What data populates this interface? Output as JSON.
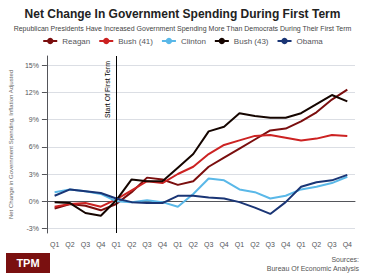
{
  "chart_data": {
    "type": "line",
    "title": "Net Change In Government Spending During First Term",
    "subtitle": "Republican Presidents Have Increased Government Spending More Than Democrats During Their First Term",
    "ylabel": "Net Change in Government Spending, Inflation Adjusted",
    "categories": [
      "Q1",
      "Q2",
      "Q3",
      "Q4",
      "Q1",
      "Q2",
      "Q3",
      "Q4",
      "Q1",
      "Q2",
      "Q3",
      "Q4",
      "Q1",
      "Q2",
      "Q3",
      "Q4",
      "Q1",
      "Q2",
      "Q3",
      "Q4"
    ],
    "series": [
      {
        "name": "Reagan",
        "color": "#7a0e0e",
        "values": [
          -0.8,
          -0.3,
          -0.5,
          -1.0,
          -0.3,
          1.0,
          2.6,
          2.4,
          1.8,
          2.2,
          3.8,
          4.8,
          5.8,
          6.8,
          7.8,
          8.0,
          8.8,
          9.8,
          11.2,
          12.3
        ]
      },
      {
        "name": "Bush (41)",
        "color": "#cc2222",
        "values": [
          -0.6,
          -0.3,
          -0.2,
          -0.6,
          0.2,
          1.2,
          2.2,
          2.0,
          3.0,
          3.8,
          5.2,
          6.2,
          6.7,
          7.2,
          7.3,
          7.0,
          6.7,
          6.9,
          7.3,
          7.2
        ]
      },
      {
        "name": "Clinton",
        "color": "#5ab8e8",
        "values": [
          1.0,
          1.3,
          1.1,
          0.8,
          0.0,
          -0.1,
          0.1,
          -0.1,
          -0.6,
          0.8,
          2.5,
          2.3,
          1.3,
          1.0,
          0.3,
          0.6,
          1.3,
          1.6,
          2.0,
          2.7
        ]
      },
      {
        "name": "Bush (43)",
        "color": "#150500",
        "values": [
          -0.1,
          -0.2,
          -1.3,
          -1.6,
          0.1,
          2.4,
          2.2,
          2.2,
          3.7,
          5.2,
          7.7,
          8.2,
          9.7,
          9.4,
          9.2,
          9.2,
          9.7,
          10.7,
          11.7,
          11.0
        ]
      },
      {
        "name": "Obama",
        "color": "#1a3575",
        "values": [
          0.6,
          1.3,
          1.1,
          0.9,
          0.3,
          -0.1,
          -0.2,
          -0.2,
          0.6,
          0.6,
          0.4,
          0.3,
          -0.1,
          -0.7,
          -1.4,
          -0.1,
          1.6,
          2.1,
          2.3,
          2.9
        ]
      }
    ],
    "ylim": [
      -3.5,
      16.0
    ],
    "yticks": [
      {
        "value": -3,
        "label": "-3%"
      },
      {
        "value": 0,
        "label": "0%"
      },
      {
        "value": 3,
        "label": "3%"
      },
      {
        "value": 6,
        "label": "6%"
      },
      {
        "value": 9,
        "label": "9%"
      },
      {
        "value": 12,
        "label": "12%"
      },
      {
        "value": 15,
        "label": "15%"
      }
    ],
    "grid": true,
    "legend": "top",
    "annotations": [
      {
        "text": "Start Of First Term",
        "x": 4
      }
    ],
    "source": "Sources:\nBureau Of Economic Analysis",
    "logo": {
      "text": "TPM",
      "color": "#7a1010"
    }
  }
}
